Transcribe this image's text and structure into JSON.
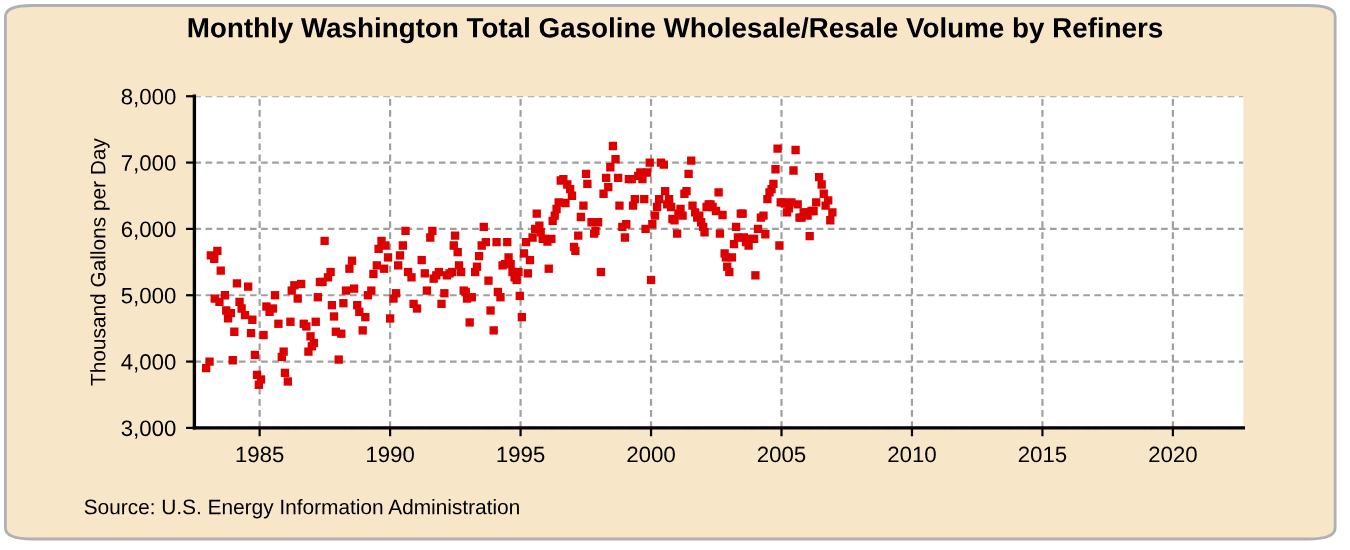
{
  "chart_data": {
    "type": "scatter",
    "title": "Monthly Washington Total Gasoline Wholesale/Resale Volume by Refiners",
    "ylabel": "Thousand Gallons per Day",
    "annotations": [
      "Source: U.S. Energy Information Administration"
    ],
    "xlim": [
      1982.5,
      2022.7
    ],
    "xticks": [
      1985,
      1990,
      1995,
      2000,
      2005,
      2010,
      2015,
      2020
    ],
    "ylim": [
      3000,
      8000
    ],
    "yticks": [
      {
        "value": 3000,
        "label": "3,000"
      },
      {
        "value": 4000,
        "label": "4,000"
      },
      {
        "value": 5000,
        "label": "5,000"
      },
      {
        "value": 6000,
        "label": "6,000"
      },
      {
        "value": 7000,
        "label": "7,000"
      },
      {
        "value": 8000,
        "label": "8,000"
      }
    ],
    "grid": true,
    "marker": "square",
    "series": [
      {
        "color": "#dd0000",
        "x": [
          1982.95,
          1983.08,
          1983.13,
          1983.26,
          1983.38,
          1983.51,
          1983.28,
          1983.46,
          1983.67,
          1983.72,
          1983.79,
          1983.9,
          1984.03,
          1983.97,
          1984.13,
          1984.23,
          1984.31,
          1984.44,
          1984.56,
          1984.67,
          1984.72,
          1984.82,
          1984.9,
          1984.97,
          1985.05,
          1985.15,
          1985.26,
          1985.38,
          1985.51,
          1985.59,
          1985.72,
          1985.85,
          1985.92,
          1985.97,
          1986.08,
          1986.18,
          1986.23,
          1986.33,
          1986.46,
          1986.59,
          1986.69,
          1986.79,
          1986.87,
          1986.95,
          1987.0,
          1987.08,
          1987.15,
          1987.23,
          1987.31,
          1987.41,
          1987.49,
          1987.62,
          1987.72,
          1987.77,
          1987.85,
          1987.92,
          1988.03,
          1988.13,
          1988.21,
          1988.31,
          1988.44,
          1988.54,
          1988.62,
          1988.74,
          1988.82,
          1988.95,
          1989.05,
          1989.15,
          1989.28,
          1989.36,
          1989.49,
          1989.56,
          1989.67,
          1989.77,
          1989.82,
          1989.92,
          1990.0,
          1990.13,
          1990.23,
          1990.31,
          1990.38,
          1990.49,
          1990.59,
          1990.69,
          1990.82,
          1990.9,
          1991.03,
          1991.21,
          1991.33,
          1991.41,
          1991.54,
          1991.62,
          1991.67,
          1991.77,
          1991.87,
          1991.97,
          1992.08,
          1992.18,
          1992.28,
          1992.38,
          1992.44,
          1992.49,
          1992.59,
          1992.64,
          1992.72,
          1992.82,
          1992.9,
          1992.95,
          1993.05,
          1993.13,
          1993.26,
          1993.33,
          1993.41,
          1993.51,
          1993.59,
          1993.67,
          1993.77,
          1993.85,
          1993.97,
          1994.08,
          1994.13,
          1994.23,
          1994.31,
          1994.41,
          1994.49,
          1994.54,
          1994.62,
          1994.69,
          1994.77,
          1994.85,
          1994.92,
          1994.97,
          1995.05,
          1995.13,
          1995.21,
          1995.28,
          1995.36,
          1995.46,
          1995.56,
          1995.62,
          1995.72,
          1995.77,
          1995.85,
          1995.92,
          1996.03,
          1996.08,
          1996.18,
          1996.23,
          1996.31,
          1996.38,
          1996.46,
          1996.54,
          1996.64,
          1996.72,
          1996.79,
          1996.9,
          1996.97,
          1997.05,
          1997.1,
          1997.21,
          1997.31,
          1997.41,
          1997.51,
          1997.56,
          1997.72,
          1997.82,
          1997.87,
          1997.97,
          1998.08,
          1998.18,
          1998.28,
          1998.36,
          1998.44,
          1998.54,
          1998.64,
          1998.74,
          1998.79,
          1998.9,
          1999.0,
          1999.05,
          1999.15,
          1999.26,
          1999.31,
          1999.38,
          1999.51,
          1999.59,
          1999.67,
          1999.74,
          1999.79,
          1999.85,
          1999.95,
          2000.0,
          2000.05,
          2000.15,
          2000.23,
          2000.31,
          2000.38,
          2000.49,
          2000.54,
          2000.62,
          2000.69,
          2000.77,
          2000.82,
          2000.9,
          2001.0,
          2001.05,
          2001.13,
          2001.21,
          2001.28,
          2001.36,
          2001.44,
          2001.54,
          2001.59,
          2001.69,
          2001.77,
          2001.85,
          2001.92,
          2002.0,
          2002.05,
          2002.13,
          2002.21,
          2002.28,
          2002.36,
          2002.49,
          2002.59,
          2002.64,
          2002.74,
          2002.82,
          2002.87,
          2002.92,
          2003.0,
          2003.1,
          2003.18,
          2003.26,
          2003.33,
          2003.44,
          2003.51,
          2003.56,
          2003.64,
          2003.74,
          2003.85,
          2003.95,
          2004.0,
          2004.1,
          2004.21,
          2004.31,
          2004.38,
          2004.46,
          2004.54,
          2004.62,
          2004.69,
          2004.77,
          2004.85,
          2004.92,
          2004.97,
          2005.08,
          2005.13,
          2005.21,
          2005.28,
          2005.38,
          2005.46,
          2005.54,
          2005.62,
          2005.69,
          2005.77,
          2005.85,
          2005.95,
          2006.0,
          2006.08,
          2006.15,
          2006.23,
          2006.33,
          2006.44,
          2006.54,
          2006.62,
          2006.69,
          2006.79,
          2006.87,
          2006.95
        ],
        "values": [
          3900,
          4000,
          5600,
          5550,
          5670,
          5370,
          4950,
          4900,
          5000,
          4770,
          4650,
          4730,
          4450,
          4020,
          5180,
          4900,
          4800,
          4700,
          5130,
          4430,
          4630,
          4100,
          3800,
          3650,
          3730,
          4400,
          4830,
          4750,
          4800,
          5000,
          4570,
          4070,
          4150,
          3830,
          3700,
          4600,
          5070,
          5150,
          4950,
          5170,
          4570,
          4530,
          4150,
          4380,
          4230,
          4280,
          4600,
          4970,
          5200,
          5200,
          5820,
          5270,
          5350,
          4850,
          4680,
          4450,
          4030,
          4420,
          4880,
          5070,
          5400,
          5520,
          5100,
          4850,
          4750,
          4470,
          4670,
          5000,
          5070,
          5320,
          5450,
          5700,
          5820,
          5400,
          5750,
          5570,
          4650,
          4950,
          5030,
          5450,
          5600,
          5750,
          5970,
          5350,
          5270,
          4870,
          4800,
          5530,
          5330,
          5070,
          5870,
          5970,
          5250,
          5300,
          5350,
          4870,
          5030,
          5300,
          5330,
          5350,
          5750,
          5900,
          5650,
          5450,
          5350,
          5070,
          5050,
          4950,
          4590,
          4970,
          5350,
          5430,
          5590,
          5750,
          6030,
          5800,
          5220,
          4770,
          4470,
          5800,
          5050,
          4970,
          5450,
          5470,
          5800,
          5570,
          5470,
          5350,
          5270,
          5230,
          5350,
          4990,
          4670,
          5630,
          5800,
          5330,
          5530,
          5870,
          6000,
          6230,
          6050,
          5950,
          5850,
          5850,
          5810,
          5400,
          5850,
          6120,
          6200,
          6300,
          6400,
          6730,
          6750,
          6390,
          6670,
          6600,
          6500,
          5730,
          5670,
          5900,
          6180,
          6350,
          6830,
          6680,
          6100,
          5930,
          5970,
          6100,
          5350,
          6530,
          6770,
          6630,
          6930,
          7250,
          7050,
          6770,
          6350,
          6030,
          5870,
          6070,
          6750,
          6750,
          6350,
          6450,
          6800,
          6850,
          6750,
          6450,
          6000,
          6850,
          7000,
          5230,
          6070,
          6200,
          6330,
          6450,
          7000,
          6970,
          6570,
          6370,
          6450,
          6330,
          6150,
          6130,
          5930,
          6230,
          6300,
          6200,
          6530,
          6570,
          6830,
          7030,
          6350,
          6250,
          6170,
          6200,
          6100,
          6030,
          5950,
          6330,
          6370,
          6370,
          6330,
          6270,
          6550,
          5930,
          6210,
          5630,
          5570,
          5430,
          5350,
          5570,
          5770,
          6030,
          5870,
          6230,
          6230,
          5870,
          5800,
          5750,
          5850,
          5850,
          5300,
          6000,
          6170,
          6200,
          5920,
          6450,
          6550,
          6600,
          6680,
          6900,
          7210,
          5750,
          6400,
          6400,
          6380,
          6250,
          6310,
          6400,
          6880,
          7190,
          6370,
          6170,
          6170,
          6250,
          6250,
          6200,
          5890,
          6270,
          6270,
          6400,
          6780,
          6670,
          6530,
          6350,
          6430,
          6130,
          6250
        ]
      }
    ]
  }
}
